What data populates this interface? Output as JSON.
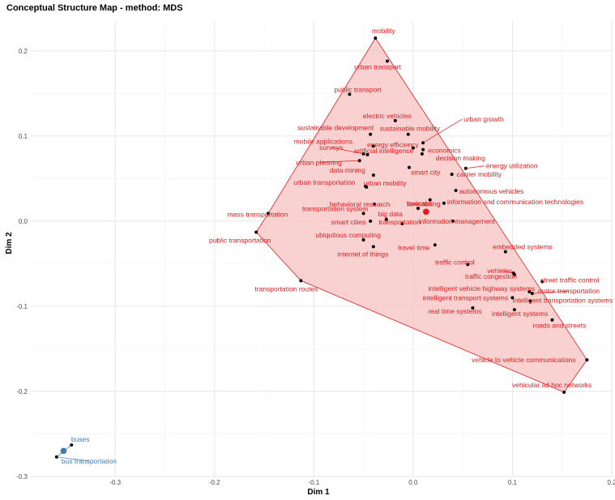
{
  "chart_data": {
    "type": "scatter",
    "title": "Conceptual Structure Map - method: MDS",
    "xlabel": "Dim 1",
    "ylabel": "Dim 2",
    "xlim": [
      -0.385,
      0.2
    ],
    "ylim": [
      -0.3,
      0.235
    ],
    "x_ticks": [
      -0.3,
      -0.2,
      -0.1,
      0,
      0.1,
      0.2
    ],
    "y_ticks": [
      -0.3,
      -0.2,
      -0.1,
      0,
      0.1,
      0.2
    ],
    "x_tick_labels": [
      "-0.3",
      "-0.2",
      "-0.1",
      "0.0",
      "0.1",
      "0.2"
    ],
    "y_tick_labels": [
      "-0.3",
      "-0.2",
      "-0.1",
      "0.0",
      "0.1",
      "0.2"
    ],
    "grid": true,
    "clusters": [
      {
        "id": 1,
        "color": "#e41a1c",
        "fill": "#f8c9c9",
        "centroid": [
          0.013,
          0.011
        ],
        "hull": [
          [
            -0.038,
            0.215
          ],
          [
            0.175,
            -0.163
          ],
          [
            0.152,
            -0.201
          ],
          [
            -0.113,
            -0.07
          ],
          [
            -0.158,
            -0.013
          ],
          [
            -0.146,
            0.009
          ]
        ],
        "points": [
          {
            "term": "mobility",
            "x": -0.038,
            "y": 0.215
          },
          {
            "term": "urban transport",
            "x": -0.026,
            "y": 0.188
          },
          {
            "term": "public transport",
            "x": -0.064,
            "y": 0.149
          },
          {
            "term": "electric vehicles",
            "x": -0.018,
            "y": 0.118
          },
          {
            "term": "sustainable development",
            "x": -0.043,
            "y": 0.102
          },
          {
            "term": "sustainable mobility",
            "x": -0.005,
            "y": 0.102
          },
          {
            "term": "urban growth",
            "x": 0.01,
            "y": 0.092
          },
          {
            "term": "mobile applications",
            "x": -0.04,
            "y": 0.088
          },
          {
            "term": "energy efficiency",
            "x": 0.0,
            "y": 0.086
          },
          {
            "term": "economics",
            "x": 0.01,
            "y": 0.084
          },
          {
            "term": "surveys",
            "x": -0.05,
            "y": 0.079
          },
          {
            "term": "artificial intelligence",
            "x": -0.046,
            "y": 0.078
          },
          {
            "term": "decision making",
            "x": 0.009,
            "y": 0.079
          },
          {
            "term": "energy utilization",
            "x": 0.053,
            "y": 0.062
          },
          {
            "term": "urban planning",
            "x": -0.054,
            "y": 0.071
          },
          {
            "term": "data mining",
            "x": -0.04,
            "y": 0.054
          },
          {
            "term": "smart city",
            "x": -0.004,
            "y": 0.063
          },
          {
            "term": "carrier mobility",
            "x": 0.039,
            "y": 0.055
          },
          {
            "term": "urban transportation",
            "x": -0.047,
            "y": 0.04
          },
          {
            "term": "urban mobility",
            "x": -0.048,
            "y": 0.041
          },
          {
            "term": "autonomous vehicles",
            "x": 0.043,
            "y": 0.036
          },
          {
            "term": "forecasting",
            "x": 0.017,
            "y": 0.025
          },
          {
            "term": "behavioral research",
            "x": -0.039,
            "y": 0.02
          },
          {
            "term": "taxicabs",
            "x": 0.005,
            "y": 0.015
          },
          {
            "term": "information and communication technologies",
            "x": 0.031,
            "y": 0.021
          },
          {
            "term": "transportation system",
            "x": -0.05,
            "y": 0.009
          },
          {
            "term": "mass transportation",
            "x": -0.146,
            "y": 0.009
          },
          {
            "term": "big data",
            "x": -0.027,
            "y": 0.002
          },
          {
            "term": "smart cities",
            "x": -0.043,
            "y": 0.0
          },
          {
            "term": "information management",
            "x": 0.04,
            "y": 0.0
          },
          {
            "term": "transportation",
            "x": -0.011,
            "y": -0.003
          },
          {
            "term": "public transportation",
            "x": -0.158,
            "y": -0.013
          },
          {
            "term": "ubiquitous computing",
            "x": -0.05,
            "y": -0.022
          },
          {
            "term": "travel time",
            "x": 0.022,
            "y": -0.028
          },
          {
            "term": "internet of things",
            "x": -0.04,
            "y": -0.03
          },
          {
            "term": "embedded systems",
            "x": 0.093,
            "y": -0.036
          },
          {
            "term": "traffic control",
            "x": 0.055,
            "y": -0.051
          },
          {
            "term": "vehicles",
            "x": 0.101,
            "y": -0.061
          },
          {
            "term": "traffic congestion",
            "x": 0.102,
            "y": -0.063
          },
          {
            "term": "street traffic control",
            "x": 0.13,
            "y": -0.071
          },
          {
            "term": "transportation routes",
            "x": -0.113,
            "y": -0.07
          },
          {
            "term": "intelligent vehicle highway systems",
            "x": 0.117,
            "y": -0.083
          },
          {
            "term": "motor transportation",
            "x": 0.12,
            "y": -0.085
          },
          {
            "term": "intelligent transport systems",
            "x": 0.1,
            "y": -0.09
          },
          {
            "term": "intelligent transportation systems",
            "x": 0.118,
            "y": -0.094
          },
          {
            "term": "real time systems",
            "x": 0.06,
            "y": -0.102
          },
          {
            "term": "intelligent systems",
            "x": 0.102,
            "y": -0.104
          },
          {
            "term": "roads and streets",
            "x": 0.14,
            "y": -0.116
          },
          {
            "term": "vehicle to vehicle communications",
            "x": 0.175,
            "y": -0.163
          },
          {
            "term": "vehicular ad hoc networks",
            "x": 0.152,
            "y": -0.201
          }
        ]
      },
      {
        "id": 2,
        "color": "#377eb8",
        "fill": "#c6dbef",
        "centroid": [
          -0.352,
          -0.27
        ],
        "hull": [
          [
            -0.344,
            -0.263
          ],
          [
            -0.359,
            -0.277
          ]
        ],
        "points": [
          {
            "term": "buses",
            "x": -0.344,
            "y": -0.263
          },
          {
            "term": "bus transportation",
            "x": -0.359,
            "y": -0.277
          }
        ]
      }
    ]
  }
}
